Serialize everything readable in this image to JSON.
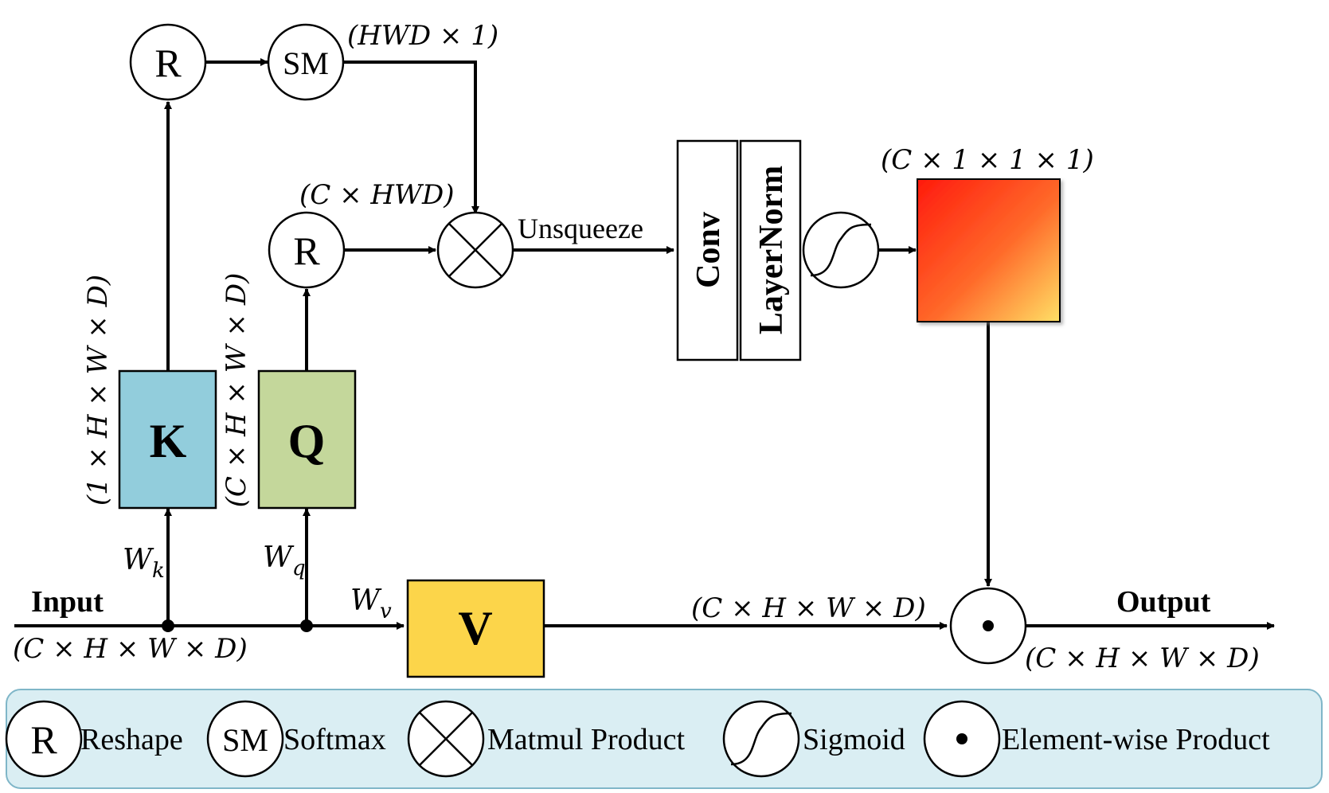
{
  "nodes": {
    "reshape_top": "R",
    "softmax": "SM",
    "reshape_mid": "R",
    "key_box": "K",
    "query_box": "Q",
    "value_box": "V",
    "conv_box": "Conv",
    "layernorm_box": "LayerNorm"
  },
  "labels": {
    "input": "Input",
    "output": "Output",
    "unsqueeze": "Unsqueeze",
    "dim_hwd1": "(HWD × 1)",
    "dim_chwd": "(C × HWD)",
    "dim_c111": "(C × 1 × 1 × 1)",
    "dim_k_vertical": "(1 × H × W × D)",
    "dim_q_vertical": "(C × H × W × D)",
    "dim_input": "(C × H × W × D)",
    "dim_v_out": "(C × H × W × D)",
    "dim_output": "(C × H × W × D)"
  },
  "weights": {
    "wk": {
      "base": "W",
      "sub": "k"
    },
    "wq": {
      "base": "W",
      "sub": "q"
    },
    "wv": {
      "base": "W",
      "sub": "v"
    }
  },
  "legend": {
    "reshape_symbol": "R",
    "reshape_label": "Reshape",
    "softmax_symbol": "SM",
    "softmax_label": "Softmax",
    "matmul_label": "Matmul Product",
    "sigmoid_label": "Sigmoid",
    "elementwise_label": "Element-wise Product"
  },
  "colors": {
    "key_box": "#92CDDC",
    "query_box": "#C4D79B",
    "value_box": "#FCD54A",
    "gradient_start": "#FF1A0D",
    "gradient_mid": "#FF6A2A",
    "gradient_end": "#FFE066",
    "legend_bg": "#DAEEF3",
    "legend_border": "#7FB6C8",
    "stroke": "#000000"
  }
}
